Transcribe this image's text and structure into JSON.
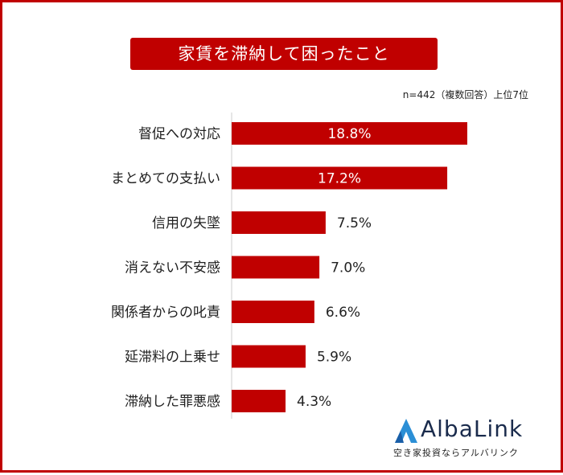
{
  "title": "家賃を滞納して困ったこと",
  "note": "n=442（複数回答）上位7位",
  "colors": {
    "bar": "#c00000",
    "frame": "#c00000",
    "axis": "#cccccc"
  },
  "chart_data": {
    "type": "bar",
    "orientation": "horizontal",
    "categories": [
      "督促への対応",
      "まとめての支払い",
      "信用の失墜",
      "消えない不安感",
      "関係者からの叱責",
      "延滞料の上乗せ",
      "滞納した罪悪感"
    ],
    "values": [
      18.8,
      17.2,
      7.5,
      7.0,
      6.6,
      5.9,
      4.3
    ],
    "data_labels": [
      "18.8%",
      "17.2%",
      "7.5%",
      "7.0%",
      "6.6%",
      "5.9%",
      "4.3%"
    ],
    "xlim": [
      0,
      20
    ],
    "grid": false,
    "legend": "none"
  },
  "logo": {
    "name": "AlbaLink",
    "tagline": "空き家投資ならアルバリンク",
    "icon": "triangle-logo-icon"
  }
}
